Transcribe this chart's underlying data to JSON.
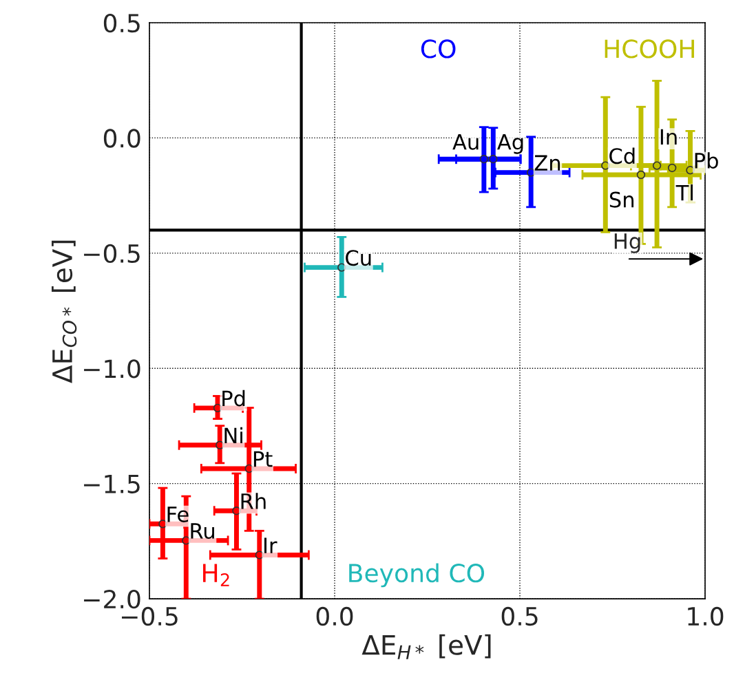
{
  "chart_data": {
    "type": "scatter",
    "xlabel": "ΔE$_{H*}$ [eV]",
    "ylabel": "ΔE$_{CO*}$ [eV]",
    "xlim": [
      -0.5,
      1.0
    ],
    "ylim": [
      -2.0,
      0.5
    ],
    "xticks": [
      {
        "value": -0.5,
        "label": "−0.5"
      },
      {
        "value": 0.0,
        "label": "0.0"
      },
      {
        "value": 0.5,
        "label": "0.5"
      },
      {
        "value": 1.0,
        "label": "1.0"
      }
    ],
    "yticks": [
      {
        "value": -2.0,
        "label": "−2.0"
      },
      {
        "value": -1.5,
        "label": "−1.5"
      },
      {
        "value": -1.0,
        "label": "−1.0"
      },
      {
        "value": -0.5,
        "label": "−0.5"
      },
      {
        "value": 0.0,
        "label": "0.0"
      },
      {
        "value": 0.5,
        "label": "0.5"
      }
    ],
    "grid": true,
    "marker": "circle",
    "series": [
      {
        "name": "H$_{2}$",
        "color": "#ff0000",
        "x": [
          -0.316,
          -0.31,
          -0.231,
          -0.265,
          -0.464,
          -0.401,
          -0.203
        ],
        "values": [
          -1.172,
          -1.333,
          -1.435,
          -1.618,
          -1.675,
          -1.747,
          -1.81
        ],
        "xerrors": [
          [
            -0.379,
            -0.248
          ],
          [
            -0.42,
            -0.198
          ],
          [
            -0.36,
            -0.105
          ],
          [
            -0.325,
            -0.211
          ],
          [
            -0.5,
            -0.406
          ],
          [
            -0.5,
            -0.288
          ],
          [
            -0.336,
            -0.07
          ]
        ],
        "errors": [
          [
            -1.219,
            -1.12
          ],
          [
            -1.411,
            -1.249
          ],
          [
            -1.705,
            -1.171
          ],
          [
            -1.786,
            -1.456
          ],
          [
            -1.825,
            -1.519
          ],
          [
            -2.0,
            -1.555
          ],
          [
            -2.0,
            -1.705
          ]
        ]
      },
      {
        "name": "Beyond CO",
        "color": "#20b8b8",
        "x": [
          0.019
        ],
        "values": [
          -0.562
        ],
        "xerrors": [
          [
            -0.081,
            0.129
          ]
        ],
        "errors": [
          [
            -0.69,
            -0.43
          ]
        ]
      },
      {
        "name": "CO",
        "color": "#0000ff",
        "x": [
          0.403,
          0.428,
          0.53
        ],
        "values": [
          -0.092,
          -0.092,
          -0.15
        ],
        "xerrors": [
          [
            0.281,
            0.502
          ],
          [
            0.328,
            0.502
          ],
          [
            0.434,
            0.634
          ]
        ],
        "errors": [
          [
            -0.235,
            0.047
          ],
          [
            -0.22,
            0.044
          ],
          [
            -0.3,
            0.005
          ]
        ]
      },
      {
        "name": "HCOOH",
        "color": "#bfbf00",
        "x": [
          0.731,
          0.87,
          0.911,
          0.96,
          0.827
        ],
        "values": [
          -0.12,
          -0.12,
          -0.13,
          -0.14,
          -0.16
        ],
        "xerrors": [
          [
            0.588,
            0.88
          ],
          [
            0.8,
            0.95
          ],
          [
            0.85,
            0.98
          ],
          [
            0.9,
            1.0
          ],
          [
            0.669,
            0.988
          ]
        ],
        "errors": [
          [
            -0.409,
            0.177
          ],
          [
            -0.475,
            0.248
          ],
          [
            -0.3,
            0.08
          ],
          [
            -0.28,
            0.03
          ],
          [
            -0.46,
            0.135
          ]
        ]
      }
    ],
    "ref_lines": [
      {
        "axis": "x",
        "value": -0.09,
        "color": "#000000"
      },
      {
        "axis": "y",
        "value": -0.4,
        "color": "#000000"
      }
    ],
    "annotations": [
      {
        "text": "Pd",
        "x": -0.316,
        "y": -1.172
      },
      {
        "text": "Ni",
        "x": -0.31,
        "y": -1.333
      },
      {
        "text": "Pt",
        "x": -0.231,
        "y": -1.435
      },
      {
        "text": "Rh",
        "x": -0.265,
        "y": -1.618
      },
      {
        "text": "Fe",
        "x": -0.464,
        "y": -1.675
      },
      {
        "text": "Ru",
        "x": -0.401,
        "y": -1.747
      },
      {
        "text": "Ir",
        "x": -0.203,
        "y": -1.81
      },
      {
        "text": "Cu",
        "x": 0.019,
        "y": -0.562
      },
      {
        "text": "Au",
        "x": 0.403,
        "y": -0.092
      },
      {
        "text": "Ag",
        "x": 0.428,
        "y": -0.092
      },
      {
        "text": "Zn",
        "x": 0.53,
        "y": -0.15
      },
      {
        "text": "Cd",
        "x": 0.731,
        "y": -0.12
      },
      {
        "text": "In",
        "x": 0.87,
        "y": -0.12
      },
      {
        "text": "Tl",
        "x": 0.911,
        "y": -0.13
      },
      {
        "text": "Pb",
        "x": 0.96,
        "y": -0.14
      },
      {
        "text": "Sn",
        "x": 0.827,
        "y": -0.16
      },
      "Hg"
    ]
  }
}
